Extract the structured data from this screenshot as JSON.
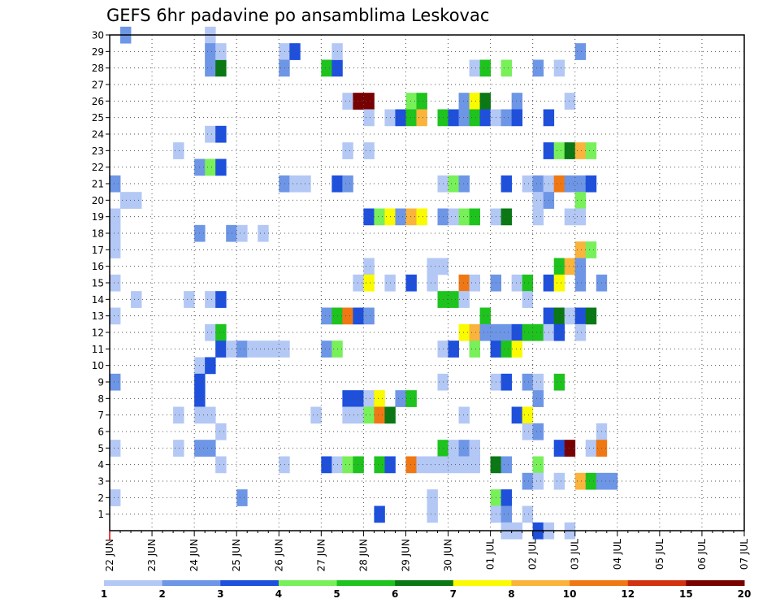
{
  "chart_data": {
    "type": "heatmap",
    "title": "GEFS 6hr padavine po ansamblima Leskovac",
    "x_tick_labels": [
      "22 JUN",
      "23 JUN",
      "24 JUN",
      "25 JUN",
      "26 JUN",
      "27 JUN",
      "28 JUN",
      "29 JUN",
      "30 JUN",
      "01 JUL",
      "02 JUL",
      "03 JUL",
      "04 JUL",
      "05 JUL",
      "06 JUL",
      "07 JUL"
    ],
    "y_tick_labels": [
      "1",
      "2",
      "3",
      "4",
      "5",
      "6",
      "7",
      "8",
      "9",
      "10",
      "11",
      "12",
      "13",
      "14",
      "15",
      "16",
      "17",
      "18",
      "19",
      "20",
      "21",
      "22",
      "23",
      "24",
      "25",
      "26",
      "27",
      "28",
      "29",
      "30"
    ],
    "x_range_days": [
      0,
      15
    ],
    "steps_per_day": 4,
    "y_range": [
      0,
      30
    ],
    "grid": true,
    "colorbar": {
      "labels": [
        "1",
        "2",
        "3",
        "4",
        "5",
        "6",
        "7",
        "8",
        "10",
        "12",
        "15",
        "20"
      ],
      "colors": [
        "#b4c8f5",
        "#6e96e6",
        "#1e50dc",
        "#78f05a",
        "#1ec31e",
        "#0a7814",
        "#fafa00",
        "#fab43c",
        "#f07814",
        "#d2320f",
        "#780000"
      ]
    },
    "cells": [
      [
        1,
        30,
        2
      ],
      [
        9,
        30,
        1
      ],
      [
        9,
        29,
        2
      ],
      [
        9,
        28,
        2
      ],
      [
        10,
        28,
        6
      ],
      [
        16,
        29,
        1
      ],
      [
        17,
        29,
        3
      ],
      [
        16,
        28,
        2
      ],
      [
        20,
        28,
        5
      ],
      [
        21,
        28,
        3
      ],
      [
        21,
        29,
        1
      ],
      [
        34,
        28,
        1
      ],
      [
        35,
        28,
        5
      ],
      [
        37,
        28,
        4
      ],
      [
        44,
        29,
        2
      ],
      [
        40,
        28,
        2
      ],
      [
        42,
        28,
        1
      ],
      [
        10,
        29,
        1
      ],
      [
        22,
        26,
        1
      ],
      [
        23,
        26,
        11
      ],
      [
        24,
        26,
        11
      ],
      [
        28,
        26,
        4
      ],
      [
        29,
        26,
        5
      ],
      [
        33,
        26,
        2
      ],
      [
        34,
        26,
        7
      ],
      [
        35,
        26,
        6
      ],
      [
        38,
        26,
        2
      ],
      [
        43,
        26,
        1
      ],
      [
        24,
        25,
        1
      ],
      [
        26,
        25,
        1
      ],
      [
        27,
        25,
        3
      ],
      [
        28,
        25,
        5
      ],
      [
        29,
        25,
        8
      ],
      [
        31,
        25,
        5
      ],
      [
        32,
        25,
        3
      ],
      [
        33,
        25,
        2
      ],
      [
        34,
        25,
        5
      ],
      [
        35,
        25,
        3
      ],
      [
        36,
        25,
        1
      ],
      [
        37,
        25,
        2
      ],
      [
        38,
        25,
        3
      ],
      [
        41,
        25,
        3
      ],
      [
        9,
        24,
        1
      ],
      [
        10,
        24,
        3
      ],
      [
        41,
        23,
        3
      ],
      [
        42,
        23,
        4
      ],
      [
        43,
        23,
        6
      ],
      [
        44,
        23,
        8
      ],
      [
        45,
        23,
        4
      ],
      [
        6,
        23,
        1
      ],
      [
        22,
        23,
        1
      ],
      [
        24,
        23,
        1
      ],
      [
        8,
        22,
        2
      ],
      [
        9,
        22,
        4
      ],
      [
        10,
        22,
        3
      ],
      [
        0,
        21,
        2
      ],
      [
        16,
        21,
        2
      ],
      [
        17,
        21,
        1
      ],
      [
        18,
        21,
        1
      ],
      [
        21,
        21,
        3
      ],
      [
        22,
        21,
        2
      ],
      [
        31,
        21,
        1
      ],
      [
        32,
        21,
        4
      ],
      [
        33,
        21,
        2
      ],
      [
        37,
        21,
        3
      ],
      [
        39,
        21,
        1
      ],
      [
        40,
        21,
        2
      ],
      [
        41,
        21,
        1
      ],
      [
        42,
        21,
        9
      ],
      [
        43,
        21,
        2
      ],
      [
        44,
        21,
        2
      ],
      [
        45,
        21,
        3
      ],
      [
        1,
        20,
        1
      ],
      [
        2,
        20,
        1
      ],
      [
        40,
        20,
        1
      ],
      [
        41,
        20,
        2
      ],
      [
        44,
        20,
        4
      ],
      [
        0,
        19,
        1
      ],
      [
        24,
        19,
        3
      ],
      [
        25,
        19,
        4
      ],
      [
        26,
        19,
        7
      ],
      [
        27,
        19,
        2
      ],
      [
        28,
        19,
        8
      ],
      [
        29,
        19,
        7
      ],
      [
        31,
        19,
        2
      ],
      [
        32,
        19,
        1
      ],
      [
        33,
        19,
        4
      ],
      [
        34,
        19,
        5
      ],
      [
        36,
        19,
        1
      ],
      [
        37,
        19,
        6
      ],
      [
        40,
        19,
        1
      ],
      [
        43,
        19,
        1
      ],
      [
        44,
        19,
        1
      ],
      [
        0,
        18,
        1
      ],
      [
        8,
        18,
        2
      ],
      [
        11,
        18,
        2
      ],
      [
        12,
        18,
        1
      ],
      [
        14,
        18,
        1
      ],
      [
        0,
        17,
        1
      ],
      [
        44,
        17,
        8
      ],
      [
        45,
        17,
        4
      ],
      [
        30,
        16,
        1
      ],
      [
        31,
        16,
        1
      ],
      [
        24,
        16,
        1
      ],
      [
        42,
        16,
        5
      ],
      [
        43,
        16,
        8
      ],
      [
        44,
        16,
        2
      ],
      [
        0,
        15,
        1
      ],
      [
        23,
        15,
        1
      ],
      [
        24,
        15,
        7
      ],
      [
        26,
        15,
        1
      ],
      [
        28,
        15,
        3
      ],
      [
        30,
        15,
        1
      ],
      [
        33,
        15,
        9
      ],
      [
        34,
        15,
        1
      ],
      [
        36,
        15,
        2
      ],
      [
        38,
        15,
        1
      ],
      [
        39,
        15,
        5
      ],
      [
        41,
        15,
        3
      ],
      [
        42,
        15,
        7
      ],
      [
        44,
        15,
        2
      ],
      [
        46,
        15,
        2
      ],
      [
        2,
        14,
        1
      ],
      [
        7,
        14,
        1
      ],
      [
        9,
        14,
        1
      ],
      [
        10,
        14,
        3
      ],
      [
        31,
        14,
        5
      ],
      [
        32,
        14,
        5
      ],
      [
        33,
        14,
        1
      ],
      [
        39,
        14,
        1
      ],
      [
        0,
        13,
        1
      ],
      [
        20,
        13,
        2
      ],
      [
        21,
        13,
        5
      ],
      [
        22,
        13,
        9
      ],
      [
        23,
        13,
        3
      ],
      [
        24,
        13,
        2
      ],
      [
        35,
        13,
        5
      ],
      [
        41,
        13,
        3
      ],
      [
        42,
        13,
        6
      ],
      [
        43,
        13,
        1
      ],
      [
        44,
        13,
        3
      ],
      [
        45,
        13,
        6
      ],
      [
        9,
        12,
        1
      ],
      [
        10,
        12,
        5
      ],
      [
        33,
        12,
        7
      ],
      [
        34,
        12,
        8
      ],
      [
        35,
        12,
        2
      ],
      [
        36,
        12,
        2
      ],
      [
        37,
        12,
        2
      ],
      [
        38,
        12,
        3
      ],
      [
        39,
        12,
        5
      ],
      [
        40,
        12,
        5
      ],
      [
        41,
        12,
        1
      ],
      [
        42,
        12,
        3
      ],
      [
        44,
        12,
        1
      ],
      [
        10,
        11,
        3
      ],
      [
        11,
        11,
        1
      ],
      [
        12,
        11,
        2
      ],
      [
        13,
        11,
        1
      ],
      [
        14,
        11,
        1
      ],
      [
        15,
        11,
        1
      ],
      [
        16,
        11,
        1
      ],
      [
        20,
        11,
        2
      ],
      [
        21,
        11,
        4
      ],
      [
        31,
        11,
        1
      ],
      [
        32,
        11,
        3
      ],
      [
        34,
        11,
        4
      ],
      [
        36,
        11,
        3
      ],
      [
        37,
        11,
        5
      ],
      [
        38,
        11,
        7
      ],
      [
        8,
        10,
        1
      ],
      [
        9,
        10,
        3
      ],
      [
        0,
        9,
        2
      ],
      [
        8,
        9,
        3
      ],
      [
        31,
        9,
        1
      ],
      [
        36,
        9,
        1
      ],
      [
        37,
        9,
        3
      ],
      [
        39,
        9,
        2
      ],
      [
        40,
        9,
        1
      ],
      [
        42,
        9,
        5
      ],
      [
        8,
        8,
        3
      ],
      [
        22,
        8,
        3
      ],
      [
        23,
        8,
        3
      ],
      [
        24,
        8,
        1
      ],
      [
        25,
        8,
        7
      ],
      [
        27,
        8,
        2
      ],
      [
        28,
        8,
        5
      ],
      [
        40,
        8,
        2
      ],
      [
        6,
        7,
        1
      ],
      [
        8,
        7,
        1
      ],
      [
        9,
        7,
        1
      ],
      [
        19,
        7,
        1
      ],
      [
        22,
        7,
        1
      ],
      [
        23,
        7,
        1
      ],
      [
        24,
        7,
        4
      ],
      [
        25,
        7,
        9
      ],
      [
        26,
        7,
        6
      ],
      [
        33,
        7,
        1
      ],
      [
        38,
        7,
        3
      ],
      [
        39,
        7,
        7
      ],
      [
        10,
        6,
        1
      ],
      [
        39,
        6,
        1
      ],
      [
        40,
        6,
        2
      ],
      [
        46,
        6,
        1
      ],
      [
        0,
        5,
        1
      ],
      [
        6,
        5,
        1
      ],
      [
        8,
        5,
        2
      ],
      [
        9,
        5,
        2
      ],
      [
        31,
        5,
        5
      ],
      [
        32,
        5,
        1
      ],
      [
        33,
        5,
        2
      ],
      [
        34,
        5,
        1
      ],
      [
        42,
        5,
        3
      ],
      [
        43,
        5,
        11
      ],
      [
        45,
        5,
        1
      ],
      [
        46,
        5,
        9
      ],
      [
        10,
        4,
        1
      ],
      [
        16,
        4,
        1
      ],
      [
        20,
        4,
        3
      ],
      [
        21,
        4,
        1
      ],
      [
        22,
        4,
        4
      ],
      [
        23,
        4,
        5
      ],
      [
        25,
        4,
        5
      ],
      [
        26,
        4,
        3
      ],
      [
        28,
        4,
        9
      ],
      [
        29,
        4,
        1
      ],
      [
        30,
        4,
        1
      ],
      [
        31,
        4,
        1
      ],
      [
        32,
        4,
        1
      ],
      [
        33,
        4,
        1
      ],
      [
        34,
        4,
        1
      ],
      [
        36,
        4,
        6
      ],
      [
        37,
        4,
        2
      ],
      [
        40,
        4,
        4
      ],
      [
        39,
        3,
        2
      ],
      [
        40,
        3,
        1
      ],
      [
        42,
        3,
        1
      ],
      [
        44,
        3,
        8
      ],
      [
        45,
        3,
        5
      ],
      [
        46,
        3,
        2
      ],
      [
        47,
        3,
        2
      ],
      [
        0,
        2,
        1
      ],
      [
        12,
        2,
        2
      ],
      [
        30,
        2,
        1
      ],
      [
        36,
        2,
        4
      ],
      [
        37,
        2,
        3
      ],
      [
        25,
        1,
        3
      ],
      [
        30,
        1,
        1
      ],
      [
        36,
        1,
        1
      ],
      [
        37,
        1,
        2
      ],
      [
        39,
        1,
        1
      ],
      [
        37,
        0,
        1
      ],
      [
        38,
        0,
        1
      ],
      [
        40,
        0,
        3
      ],
      [
        41,
        0,
        1
      ],
      [
        43,
        0,
        1
      ]
    ]
  }
}
